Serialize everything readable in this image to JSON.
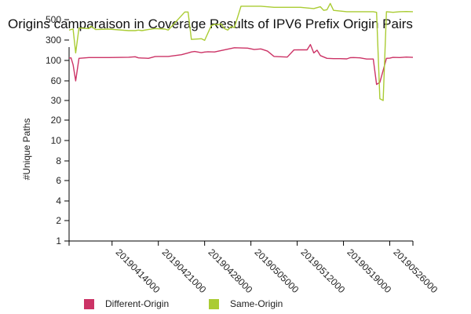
{
  "chart_data": {
    "type": "line",
    "title": "Origins camparaison in Coverage Results of IPV6 Prefix Origin Pairs",
    "xlabel": "",
    "ylabel": "#Unique Paths",
    "y_scale": "log",
    "yticks": [
      1,
      2,
      4,
      6,
      8,
      10,
      20,
      30,
      60,
      100,
      300,
      500
    ],
    "yticklabels": [
      "1",
      "2",
      "4",
      "6",
      "8",
      "10",
      "20",
      "30",
      "60",
      "100",
      "300",
      "500"
    ],
    "xticklabels": [
      "20190414000",
      "20190421000",
      "20190428000",
      "20190505000",
      "20190512000",
      "20190519000",
      "20190526000"
    ],
    "xtick_positions_days": [
      6.5,
      13.5,
      20.5,
      27.5,
      34.5,
      41.5,
      48.5
    ],
    "x_range_days": [
      0,
      52
    ],
    "legend_position": "bottom",
    "series": [
      {
        "name": "Different-Origin",
        "color": "#cc3366",
        "x_days": [
          0,
          0.3,
          0.6,
          1,
          1.5,
          3,
          6,
          9,
          10,
          10.5,
          11,
          11.5,
          12,
          13,
          13.5,
          15,
          17,
          18,
          18.5,
          19,
          20,
          20.5,
          21,
          22,
          25,
          27,
          28,
          29,
          30,
          31,
          32,
          33,
          34,
          35,
          36,
          36.5,
          37,
          37.5,
          38,
          39,
          40,
          41,
          42,
          42.5,
          43,
          44,
          45,
          46,
          46.5,
          47,
          48,
          48.5,
          49,
          50,
          51,
          52
        ],
        "values": [
          113,
          115,
          90,
          60,
          112,
          117,
          117,
          119,
          122,
          115,
          114,
          113,
          112,
          123,
          124,
          124,
          136,
          150,
          158,
          162,
          152,
          157,
          160,
          158,
          198,
          194,
          180,
          186,
          165,
          124,
          122,
          120,
          176,
          177,
          177,
          236,
          150,
          174,
          130,
          112,
          110,
          110,
          109,
          116,
          117,
          115,
          108,
          108,
          53,
          57,
          112,
          113,
          118,
          117,
          120,
          118
        ]
      },
      {
        "name": "Same-Origin",
        "color": "#aacc33",
        "x_days": [
          0,
          0.3,
          0.6,
          1,
          1.5,
          3,
          3.3,
          4,
          6,
          9,
          10,
          10.5,
          11,
          12,
          13,
          14.5,
          15,
          17.5,
          18,
          18.5,
          20,
          20.5,
          21.5,
          22,
          22.5,
          23,
          23.5,
          24,
          24.5,
          25,
          26,
          27,
          29,
          31,
          32,
          35,
          37,
          38,
          38.5,
          39,
          39.5,
          40,
          42,
          44,
          46,
          46.5,
          47,
          47.5,
          48,
          49,
          50,
          51,
          52
        ],
        "values": [
          385,
          390,
          395,
          150,
          405,
          400,
          425,
          390,
          395,
          380,
          380,
          385,
          380,
          390,
          400,
          395,
          385,
          605,
          605,
          305,
          310,
          295,
          430,
          445,
          440,
          450,
          400,
          385,
          420,
          410,
          700,
          700,
          700,
          680,
          680,
          680,
          660,
          690,
          630,
          640,
          750,
          630,
          610,
          610,
          610,
          600,
          32,
          30,
          610,
          600,
          610,
          612,
          610
        ]
      }
    ]
  }
}
